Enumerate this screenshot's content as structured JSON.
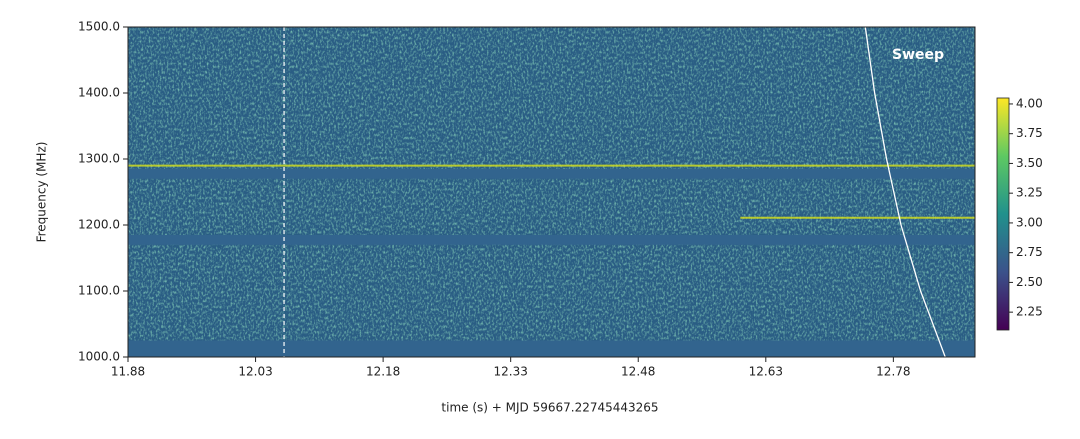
{
  "chart_data": {
    "type": "heatmap",
    "xlabel": "time (s) + MJD 59667.22745443265",
    "ylabel": "Frequency (MHz)",
    "annotation": "Sweep",
    "xlim": [
      11.88,
      12.876
    ],
    "xticks": [
      11.88,
      12.03,
      12.18,
      12.33,
      12.48,
      12.63,
      12.78
    ],
    "ylim": [
      1000,
      1500
    ],
    "yticks": [
      {
        "value": 1000,
        "label": "1000.0"
      },
      {
        "value": 1100,
        "label": "1100.0"
      },
      {
        "value": 1200,
        "label": "1200.0"
      },
      {
        "value": 1300,
        "label": "1300.0"
      },
      {
        "value": 1400,
        "label": "1400.0"
      },
      {
        "value": 1500,
        "label": "1500.0"
      }
    ],
    "clim": [
      2.1,
      4.05
    ],
    "cticks": [
      {
        "value": 2.25,
        "label": "2.25"
      },
      {
        "value": 2.5,
        "label": "2.50"
      },
      {
        "value": 2.75,
        "label": "2.75"
      },
      {
        "value": 3.0,
        "label": "3.00"
      },
      {
        "value": 3.25,
        "label": "3.25"
      },
      {
        "value": 3.5,
        "label": "3.50"
      },
      {
        "value": 3.75,
        "label": "3.75"
      },
      {
        "value": 4.0,
        "label": "4.00"
      }
    ],
    "masked_bands": [
      [
        1270,
        1285
      ],
      [
        1170,
        1185
      ],
      [
        1000,
        1025
      ]
    ],
    "bright_lines": [
      {
        "y": 1290,
        "x": [
          11.88,
          12.876
        ]
      },
      {
        "y": 1211,
        "x": [
          12.6,
          12.876
        ]
      }
    ],
    "marker_time": 12.0635,
    "sweep": {
      "x": [
        12.747,
        12.758,
        12.772,
        12.789,
        12.812,
        12.841
      ],
      "y": [
        1500,
        1400,
        1300,
        1200,
        1100,
        1000
      ]
    }
  }
}
